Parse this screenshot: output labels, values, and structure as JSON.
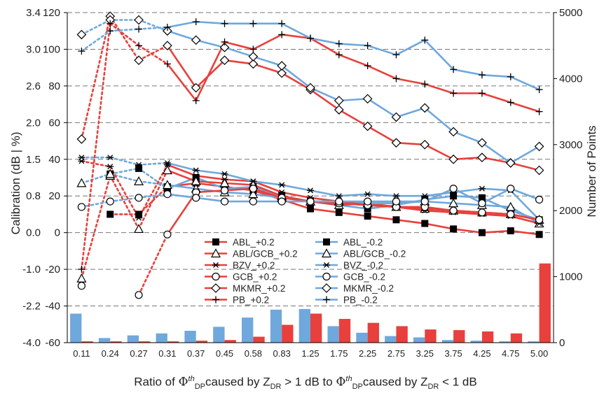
{
  "chart_data": {
    "type": "line",
    "categories": [
      "0.11",
      "0.24",
      "0.27",
      "0.31",
      "0.37",
      "0.45",
      "0.58",
      "0.83",
      "1.25",
      "1.75",
      "2.25",
      "2.75",
      "3.25",
      "3.75",
      "4.25",
      "4.75",
      "5.00"
    ],
    "y_left_outer": {
      "label": "Calibration (dB | %)",
      "ticks": [
        "3.4",
        "3.0",
        "2.6",
        "2.0",
        "1.5",
        "0.8",
        "0.0",
        "-1.0",
        "-2.2",
        "-4.0"
      ]
    },
    "y_left_inner": {
      "ticks": [
        120,
        100,
        80,
        60,
        40,
        20,
        0,
        -20,
        -40,
        -60
      ],
      "ylim": [
        -60,
        120
      ]
    },
    "y_right": {
      "label": "Number of Points",
      "ticks": [
        5000,
        4000,
        3000,
        2000,
        1000,
        0
      ],
      "ylim": [
        0,
        5000
      ]
    },
    "xlabel_parts": {
      "prefix": "Ratio of ",
      "phi": "Φ",
      "sup": "th",
      "sub": "DP",
      "mid1": "caused by Z",
      "zsub": "DR",
      "gt": " > 1 dB to ",
      "mid2": "caused by Z",
      "lt": " < 1 dB"
    },
    "colors": {
      "plus": "#e8403c",
      "minus": "#6fa8dc"
    },
    "series": [
      {
        "name": "ABL_+0.2",
        "group": "plus",
        "marker": "square-filled",
        "axis": "inner",
        "values": [
          null,
          10,
          10,
          25,
          27,
          25,
          23,
          18,
          13,
          11,
          9,
          7,
          5,
          2,
          0,
          1,
          -1
        ]
      },
      {
        "name": "ABL_-0.2",
        "group": "minus",
        "marker": "square-filled",
        "axis": "inner",
        "values": [
          null,
          32,
          35,
          24,
          30,
          24,
          25,
          20,
          17,
          15,
          13,
          15,
          18,
          20,
          19,
          12,
          7
        ]
      },
      {
        "name": "ABL/GCB_+0.2",
        "group": "plus",
        "marker": "triangle-open",
        "axis": "inner",
        "values": [
          -25,
          31,
          2,
          34,
          28,
          27,
          26,
          20,
          17,
          15,
          16,
          14,
          13,
          12,
          11,
          10,
          7
        ]
      },
      {
        "name": "ABL/GCB_-0.2",
        "group": "minus",
        "marker": "triangle-open",
        "axis": "inner",
        "values": [
          27,
          32,
          28,
          26,
          24,
          22,
          21,
          19,
          17,
          17,
          16,
          16,
          17,
          16,
          15,
          14,
          5
        ]
      },
      {
        "name": "BZV_+0.2",
        "group": "plus",
        "marker": "asterisk",
        "axis": "inner",
        "values": [
          39,
          36,
          8,
          37,
          31,
          29,
          28,
          22,
          19,
          17,
          15,
          14,
          12,
          11,
          10,
          9,
          5
        ]
      },
      {
        "name": "BVZ_-0.2",
        "group": "minus",
        "marker": "asterisk",
        "axis": "inner",
        "values": [
          41,
          41,
          37,
          38,
          34,
          32,
          28,
          26,
          23,
          20,
          21,
          20,
          20,
          22,
          24,
          23,
          7
        ]
      },
      {
        "name": "GCB_+0.2",
        "group": "plus",
        "marker": "circle-open",
        "axis": "inner",
        "values": [
          -29,
          null,
          -34,
          -1,
          22,
          23,
          24,
          19,
          17,
          16,
          15,
          14,
          14,
          12,
          11,
          10,
          7
        ]
      },
      {
        "name": "GCB_-0.2",
        "group": "minus",
        "marker": "circle-open",
        "axis": "inner",
        "values": [
          14,
          17,
          19,
          21,
          19,
          17,
          17,
          17,
          17,
          17,
          17,
          17,
          17,
          24,
          16,
          24,
          18
        ]
      },
      {
        "name": "MKMR_+0.2",
        "group": "plus",
        "marker": "diamond-open",
        "axis": "inner",
        "values": [
          51,
          118,
          94,
          102,
          79,
          94,
          92,
          87,
          78,
          67,
          58,
          49,
          48,
          40,
          41,
          38,
          34
        ]
      },
      {
        "name": "MKMR_-0.2",
        "group": "minus",
        "marker": "diamond-open",
        "axis": "inner",
        "values": [
          108,
          116,
          116,
          110,
          105,
          101,
          96,
          91,
          79,
          72,
          73,
          63,
          68,
          55,
          49,
          38,
          47
        ]
      },
      {
        "name": "PB_+0.2",
        "group": "plus",
        "marker": "plus",
        "axis": "inner",
        "values": [
          -20,
          114,
          102,
          92,
          72,
          104,
          100,
          108,
          106,
          97,
          91,
          84,
          81,
          76,
          76,
          71,
          66
        ]
      },
      {
        "name": "PB_-0.2",
        "group": "minus",
        "marker": "plus",
        "axis": "inner",
        "values": [
          99,
          110,
          111,
          112,
          115,
          114,
          114,
          114,
          106,
          103,
          102,
          97,
          105,
          89,
          86,
          85,
          78
        ]
      }
    ],
    "bars": [
      {
        "group": "minus",
        "name": "minus",
        "values": [
          440,
          70,
          110,
          140,
          180,
          240,
          380,
          500,
          510,
          250,
          150,
          100,
          80,
          40,
          30,
          20,
          20
        ]
      },
      {
        "group": "plus",
        "name": "plus",
        "values": [
          20,
          20,
          20,
          20,
          30,
          40,
          90,
          270,
          440,
          360,
          300,
          250,
          200,
          190,
          170,
          140,
          1200
        ]
      }
    ],
    "grid": "dashed horizontal",
    "legend_position": "center-bottom"
  }
}
